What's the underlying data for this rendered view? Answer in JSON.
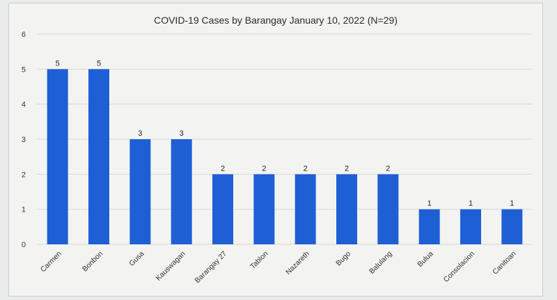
{
  "chart_data": {
    "type": "bar",
    "title": "COVID-19 Cases by Barangay January 10, 2022 (N=29)",
    "xlabel": "",
    "ylabel": "",
    "categories": [
      "Carmen",
      "Bonbon",
      "Gusa",
      "Kauswagan",
      "Barangay 27",
      "Tablon",
      "Nazareth",
      "Bugo",
      "Balulang",
      "Bulua",
      "Consolacion",
      "Canitoan"
    ],
    "values": [
      5,
      5,
      3,
      3,
      2,
      2,
      2,
      2,
      2,
      1,
      1,
      1
    ],
    "ylim": [
      0,
      6
    ],
    "yticks": [
      0,
      1,
      2,
      3,
      4,
      5,
      6
    ],
    "grid": true,
    "legend": "none",
    "bar_color": "#1f5fd6",
    "gridline_color": "#d6d8d6"
  }
}
